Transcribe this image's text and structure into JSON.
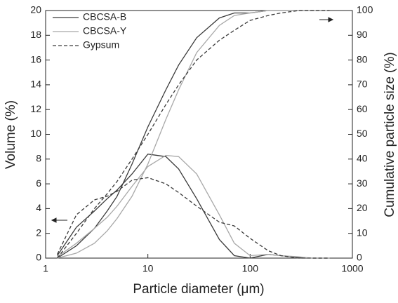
{
  "chart_data": {
    "type": "line",
    "xlabel": "Particle diameter (μm)",
    "ylabel": "Volume (%)",
    "y2label": "Cumulative particle size (%)",
    "xscale": "log",
    "xlim": [
      1,
      1000
    ],
    "xticks": [
      1,
      10,
      100,
      1000
    ],
    "ylim": [
      0,
      20
    ],
    "yticks": [
      0,
      2,
      4,
      6,
      8,
      10,
      12,
      14,
      16,
      18,
      20
    ],
    "y2lim": [
      0,
      100
    ],
    "y2ticks": [
      0,
      10,
      20,
      30,
      40,
      50,
      60,
      70,
      80,
      90,
      100
    ],
    "legend": "upper left",
    "x": [
      1.3,
      2,
      3,
      4,
      5,
      7,
      10,
      15,
      20,
      30,
      50,
      70,
      100,
      150,
      200,
      300,
      400,
      600
    ],
    "series": [
      {
        "name": "CBCSA-B",
        "color": "#3a3a3a",
        "dash": "solid",
        "values": [
          0.2,
          2.5,
          3.8,
          4.8,
          5.5,
          6.8,
          8.4,
          8.2,
          7.2,
          4.8,
          1.5,
          0.2,
          0,
          0.3,
          0.2,
          0.05,
          0,
          0
        ],
        "y2_values": [
          0,
          5,
          12,
          19,
          25,
          38,
          53,
          68,
          78,
          89,
          97,
          99,
          99,
          100,
          100,
          100,
          100,
          100
        ]
      },
      {
        "name": "CBCSA-Y",
        "color": "#a8a8a8",
        "dash": "solid",
        "values": [
          0.1,
          1.2,
          2.4,
          3.3,
          4.2,
          5.8,
          7.4,
          8.3,
          8.2,
          6.8,
          3.5,
          1.2,
          0.2,
          0.3,
          0.2,
          0.1,
          0,
          0
        ],
        "y2_values": [
          0,
          2,
          6,
          11,
          16,
          25,
          38,
          56,
          68,
          83,
          94,
          98,
          99,
          100,
          100,
          100,
          100,
          100
        ]
      },
      {
        "name": "Gypsum",
        "color": "#3a3a3a",
        "dash": "dashed",
        "values": [
          0.3,
          3.5,
          4.7,
          5.0,
          5.4,
          6.3,
          6.5,
          6.0,
          5.3,
          4.2,
          2.9,
          2.6,
          1.6,
          0.6,
          0.2,
          0,
          0,
          0
        ],
        "y2_values": [
          0,
          10,
          20,
          26,
          31,
          40,
          50,
          62,
          70,
          80,
          88,
          92,
          96,
          98,
          99,
          100,
          100,
          100
        ]
      }
    ]
  }
}
